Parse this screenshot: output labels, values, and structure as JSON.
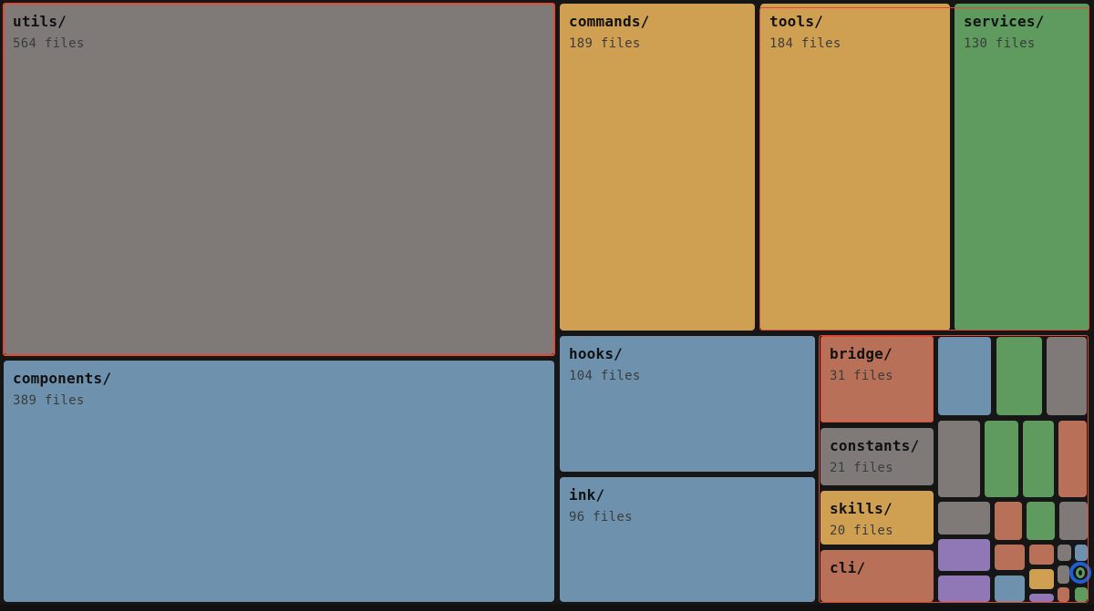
{
  "palette": {
    "gray": "#7f7a77",
    "gold": "#cfa052",
    "green": "#5f9a5f",
    "blue": "#6e92ad",
    "rust": "#b87058",
    "purple": "#9078b6",
    "highlight": "#e04a35",
    "ring_outer": "#1f5fd6",
    "ring_inner": "#5f9a5f"
  },
  "directories": [
    {
      "name": "utils/",
      "count": "564 files",
      "color": "gray"
    },
    {
      "name": "components/",
      "count": "389 files",
      "color": "blue"
    },
    {
      "name": "commands/",
      "count": "189 files",
      "color": "gold"
    },
    {
      "name": "tools/",
      "count": "184 files",
      "color": "gold"
    },
    {
      "name": "services/",
      "count": "130 files",
      "color": "green"
    },
    {
      "name": "hooks/",
      "count": "104 files",
      "color": "blue"
    },
    {
      "name": "ink/",
      "count": "96 files",
      "color": "blue"
    },
    {
      "name": "bridge/",
      "count": "31 files",
      "color": "rust"
    },
    {
      "name": "constants/",
      "count": "21 files",
      "color": "gray"
    },
    {
      "name": "skills/",
      "count": "20 files",
      "color": "gold"
    },
    {
      "name": "cli/",
      "count": "",
      "color": "rust"
    }
  ],
  "small_tiles": [
    {
      "color": "blue"
    },
    {
      "color": "green"
    },
    {
      "color": "gray"
    },
    {
      "color": "gray"
    },
    {
      "color": "green"
    },
    {
      "color": "green"
    },
    {
      "color": "rust"
    },
    {
      "color": "gray"
    },
    {
      "color": "rust"
    },
    {
      "color": "green"
    },
    {
      "color": "gray"
    },
    {
      "color": "purple"
    },
    {
      "color": "rust"
    },
    {
      "color": "rust"
    },
    {
      "color": "gray"
    },
    {
      "color": "blue"
    },
    {
      "color": "purple"
    },
    {
      "color": "blue"
    },
    {
      "color": "gold"
    },
    {
      "color": "gray"
    },
    {
      "color": "purple"
    },
    {
      "color": "rust"
    },
    {
      "color": "green"
    }
  ]
}
